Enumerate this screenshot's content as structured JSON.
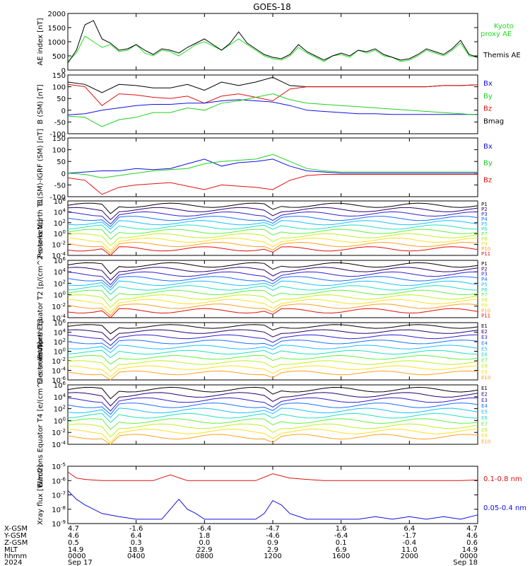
{
  "title": "GOES-18",
  "colors": {
    "black": "#000000",
    "red": "#e01010",
    "green": "#20d020",
    "blue": "#1010e0",
    "kyoto": "#20e020"
  },
  "chart_data": [
    {
      "type": "line",
      "panel": "ae",
      "ylabel": "AE index [nT]",
      "ylim": [
        0,
        2000
      ],
      "ticks": [
        "2000",
        "1500",
        "1000",
        "500",
        "0"
      ],
      "legend": [
        {
          "label": "Kyoto",
          "color": "#20e020"
        },
        {
          "label": "proxy AE",
          "color": "#20e020"
        },
        {
          "label": "Themis AE",
          "color": "#000000"
        }
      ],
      "series": [
        {
          "name": "Kyoto proxy AE",
          "color": "#20e020",
          "x": [
            0,
            0.5,
            1,
            1.5,
            2,
            2.5,
            3,
            3.5,
            4,
            4.5,
            5,
            5.5,
            6,
            6.5,
            7,
            7.5,
            8,
            8.5,
            9,
            9.5,
            10,
            10.5,
            11,
            11.5,
            12,
            12.5,
            13,
            13.5,
            14,
            14.5,
            15,
            15.5,
            16,
            16.5,
            17,
            17.5,
            18,
            18.5,
            19,
            19.5,
            20,
            20.5,
            21,
            21.5,
            22,
            22.5,
            23,
            23.5,
            24
          ],
          "y": [
            300,
            600,
            1200,
            1000,
            800,
            900,
            650,
            700,
            900,
            600,
            500,
            700,
            650,
            500,
            700,
            900,
            1000,
            850,
            700,
            900,
            1100,
            900,
            700,
            500,
            400,
            350,
            500,
            800,
            600,
            450,
            300,
            500,
            550,
            450,
            700,
            600,
            700,
            500,
            450,
            300,
            350,
            500,
            700,
            600,
            500,
            700,
            950,
            500,
            450
          ]
        },
        {
          "name": "Themis AE",
          "color": "#000000",
          "x": [
            0,
            0.5,
            1,
            1.5,
            2,
            2.5,
            3,
            3.5,
            4,
            4.5,
            5,
            5.5,
            6,
            6.5,
            7,
            7.5,
            8,
            8.5,
            9,
            9.5,
            10,
            10.5,
            11,
            11.5,
            12,
            12.5,
            13,
            13.5,
            14,
            14.5,
            15,
            15.5,
            16,
            16.5,
            17,
            17.5,
            18,
            18.5,
            19,
            19.5,
            20,
            20.5,
            21,
            21.5,
            22,
            22.5,
            23,
            23.5,
            24
          ],
          "y": [
            250,
            700,
            1600,
            1750,
            1100,
            950,
            700,
            750,
            900,
            700,
            550,
            750,
            700,
            600,
            800,
            950,
            1100,
            900,
            700,
            950,
            1350,
            950,
            750,
            550,
            450,
            400,
            550,
            900,
            650,
            500,
            350,
            500,
            600,
            500,
            700,
            650,
            750,
            550,
            450,
            350,
            400,
            550,
            750,
            650,
            550,
            750,
            1050,
            550,
            450
          ]
        }
      ]
    },
    {
      "type": "line",
      "panel": "bsm",
      "ylabel": "B (SM) [nT]",
      "ylim": [
        -100,
        150
      ],
      "ticks": [
        "150",
        "100",
        "50",
        "0",
        "-50",
        "-100"
      ],
      "legend": [
        {
          "label": "Bx",
          "color": "#1010e0"
        },
        {
          "label": "By",
          "color": "#20d020"
        },
        {
          "label": "Bz",
          "color": "#e01010"
        },
        {
          "label": "Bmag",
          "color": "#000000"
        }
      ],
      "series": [
        {
          "name": "Bmag",
          "color": "#000000",
          "x": [
            0,
            1,
            2,
            3,
            4,
            5,
            6,
            7,
            8,
            9,
            10,
            11,
            12,
            13,
            14,
            15,
            16,
            17,
            18,
            19,
            20,
            21,
            22,
            23,
            24
          ],
          "y": [
            120,
            110,
            75,
            110,
            105,
            95,
            95,
            110,
            85,
            120,
            105,
            120,
            140,
            105,
            100,
            100,
            100,
            100,
            100,
            100,
            100,
            100,
            105,
            105,
            108
          ]
        },
        {
          "name": "Bz",
          "color": "#e01010",
          "x": [
            0,
            1,
            2,
            3,
            4,
            5,
            6,
            7,
            8,
            9,
            10,
            11,
            12,
            13,
            14,
            15,
            16,
            17,
            18,
            19,
            20,
            21,
            22,
            23,
            24
          ],
          "y": [
            110,
            100,
            20,
            70,
            65,
            55,
            50,
            60,
            30,
            60,
            70,
            55,
            40,
            90,
            100,
            100,
            100,
            100,
            100,
            100,
            100,
            100,
            105,
            105,
            108
          ]
        },
        {
          "name": "Bx",
          "color": "#1010e0",
          "x": [
            0,
            1,
            2,
            3,
            4,
            5,
            6,
            7,
            8,
            9,
            10,
            11,
            12,
            13,
            14,
            15,
            16,
            17,
            18,
            19,
            20,
            21,
            22,
            23,
            24
          ],
          "y": [
            -20,
            -15,
            0,
            10,
            20,
            25,
            25,
            30,
            30,
            40,
            45,
            40,
            35,
            20,
            0,
            -5,
            -10,
            -15,
            -15,
            -18,
            -18,
            -18,
            -18,
            -18,
            -18
          ]
        },
        {
          "name": "By",
          "color": "#20d020",
          "x": [
            0,
            1,
            2,
            3,
            4,
            5,
            6,
            7,
            8,
            9,
            10,
            11,
            12,
            13,
            14,
            15,
            16,
            17,
            18,
            19,
            20,
            21,
            22,
            23,
            24
          ],
          "y": [
            -25,
            -30,
            -70,
            -40,
            -30,
            -10,
            -10,
            10,
            0,
            30,
            40,
            55,
            70,
            45,
            30,
            25,
            20,
            15,
            10,
            5,
            0,
            -5,
            -10,
            -15,
            -20
          ]
        }
      ]
    },
    {
      "type": "line",
      "panel": "bigrf",
      "ylabel": "B (SM)-IGRF (SM) [nT]",
      "ylim": [
        -100,
        150
      ],
      "ticks": [
        "150",
        "100",
        "50",
        "0",
        "-50",
        "-100"
      ],
      "legend": [
        {
          "label": "Bx",
          "color": "#1010e0"
        },
        {
          "label": "By",
          "color": "#20d020"
        },
        {
          "label": "Bz",
          "color": "#e01010"
        }
      ],
      "series": [
        {
          "name": "Bx",
          "color": "#1010e0",
          "x": [
            0,
            1,
            2,
            3,
            4,
            5,
            6,
            7,
            8,
            9,
            10,
            11,
            12,
            13,
            14,
            15,
            16,
            17,
            18,
            19,
            20,
            21,
            22,
            23,
            24
          ],
          "y": [
            0,
            5,
            10,
            10,
            20,
            15,
            20,
            40,
            60,
            30,
            45,
            50,
            60,
            30,
            10,
            5,
            0,
            0,
            0,
            0,
            0,
            0,
            0,
            0,
            0
          ]
        },
        {
          "name": "By",
          "color": "#20d020",
          "x": [
            0,
            1,
            2,
            3,
            4,
            5,
            6,
            7,
            8,
            9,
            10,
            11,
            12,
            13,
            14,
            15,
            16,
            17,
            18,
            19,
            20,
            21,
            22,
            23,
            24
          ],
          "y": [
            0,
            -5,
            -20,
            -10,
            0,
            10,
            15,
            20,
            40,
            50,
            55,
            60,
            80,
            50,
            20,
            10,
            5,
            5,
            5,
            5,
            5,
            5,
            5,
            5,
            5
          ]
        },
        {
          "name": "Bz",
          "color": "#e01010",
          "x": [
            0,
            1,
            2,
            3,
            4,
            5,
            6,
            7,
            8,
            9,
            10,
            11,
            12,
            13,
            14,
            15,
            16,
            17,
            18,
            19,
            20,
            21,
            22,
            23,
            24
          ],
          "y": [
            -20,
            -30,
            -90,
            -60,
            -50,
            -45,
            -40,
            -55,
            -70,
            -50,
            -55,
            -60,
            -70,
            -30,
            -10,
            -5,
            -5,
            -5,
            -5,
            -5,
            -5,
            -5,
            -5,
            -5,
            -5
          ]
        }
      ]
    },
    {
      "type": "line",
      "panel": "protons-t1",
      "ylabel": "Protons North T1",
      "yscale": "log",
      "ylim": [
        0.0001,
        1000000
      ],
      "ticks": [
        "10^6",
        "10^4",
        "10^2",
        "10^0",
        "10^-2",
        "10^-4"
      ],
      "legend": [
        "P1",
        "P2",
        "P3",
        "P4",
        "P5",
        "P6",
        "P7",
        "P8",
        "P9",
        "P10",
        "P11"
      ]
    },
    {
      "type": "line",
      "panel": "protons-t2",
      "ylabel": "Protons Equator T2 [p/(cm^2-s-sr-keV)]",
      "yscale": "log",
      "ylim": [
        0.0001,
        1000000
      ],
      "ticks": [
        "10^6",
        "10^4",
        "10^2",
        "10^0",
        "10^-2",
        "10^-4"
      ],
      "legend": [
        "P1",
        "P2",
        "P3",
        "P4",
        "P5",
        "P6",
        "P7",
        "P8",
        "P9",
        "P10",
        "P11"
      ]
    },
    {
      "type": "line",
      "panel": "electrons-t3",
      "ylabel": "Electrons North T3",
      "yscale": "log",
      "ylim": [
        1e-06,
        1000000
      ],
      "ticks": [
        "10^6",
        "10^4",
        "10^2",
        "10^0",
        "10^-2",
        "10^-4",
        "10^-6"
      ],
      "legend": [
        "E1",
        "E2",
        "E3",
        "E4",
        "E5",
        "E6",
        "E7",
        "E8",
        "E9",
        "E10"
      ]
    },
    {
      "type": "line",
      "panel": "electrons-t4",
      "ylabel": "Electrons Equator T4 [e/(cm^2-s-sr-keV)]",
      "yscale": "log",
      "ylim": [
        0.0001,
        1000000
      ],
      "ticks": [
        "10^6",
        "10^4",
        "10^2",
        "10^0",
        "10^-2",
        "10^-4"
      ],
      "legend": [
        "E1",
        "E2",
        "E3",
        "E4",
        "E5",
        "E6",
        "E7",
        "E8",
        "E9",
        "E10"
      ]
    },
    {
      "type": "line",
      "panel": "xray",
      "ylabel": "Xray flux [W/m2]",
      "yscale": "log",
      "ylim": [
        1e-09,
        1e-05
      ],
      "ticks": [
        "10^-5",
        "10^-6",
        "10^-7",
        "10^-8",
        "10^-9"
      ],
      "legend": [
        {
          "label": "0.1-0.8 nm",
          "color": "#e01010"
        },
        {
          "label": "0.05-0.4 nm",
          "color": "#1010e0"
        }
      ],
      "series": [
        {
          "name": "0.1-0.8 nm",
          "color": "#e01010",
          "x": [
            0,
            0.5,
            1,
            2,
            3,
            4,
            5,
            6,
            7,
            7.8,
            8.2,
            9,
            10,
            11,
            12,
            13,
            14,
            15,
            16,
            17,
            18,
            19,
            20,
            21,
            22,
            23,
            24
          ],
          "y": [
            4e-06,
            1.5e-06,
            1.2e-06,
            1e-06,
            1e-06,
            1e-06,
            1e-06,
            2.5e-06,
            1e-06,
            1e-06,
            1e-06,
            1e-06,
            1e-06,
            1e-06,
            3e-06,
            1.5e-06,
            1.2e-06,
            1e-06,
            1e-06,
            1e-06,
            1e-06,
            1e-06,
            1e-06,
            1e-06,
            1e-06,
            1e-06,
            1.1e-06
          ]
        },
        {
          "name": "0.05-0.4 nm",
          "color": "#1010e0",
          "x": [
            0,
            0.5,
            1,
            2,
            3,
            4,
            5,
            5.5,
            6,
            6.5,
            7,
            7.5,
            8,
            9,
            10,
            11,
            11.5,
            12,
            12.5,
            13,
            14,
            15,
            16,
            17,
            18,
            19,
            20,
            21,
            22,
            23,
            24
          ],
          "y": [
            2e-07,
            5e-08,
            2e-08,
            5e-09,
            3e-09,
            2e-09,
            2e-09,
            2e-09,
            1e-08,
            5e-08,
            1e-08,
            5e-09,
            2e-09,
            2e-09,
            2e-09,
            2e-09,
            5e-09,
            4e-08,
            2e-08,
            5e-09,
            2e-09,
            2e-09,
            2e-09,
            2e-09,
            3e-09,
            2e-09,
            3e-09,
            2e-09,
            3e-09,
            2e-09,
            4e-09
          ]
        }
      ]
    }
  ],
  "xaxis": {
    "row_labels": [
      "X-GSM",
      "Y-GSM",
      "Z-GSM",
      "MLT",
      "hhmm",
      "2024"
    ],
    "columns": [
      [
        "4.7",
        "4.6",
        "0.5",
        "14.9",
        "0000",
        "Sep 17"
      ],
      [
        "-1.6",
        "6.4",
        "0.3",
        "18.9",
        "0400",
        ""
      ],
      [
        "-6.4",
        "1.8",
        "0.0",
        "22.9",
        "0800",
        ""
      ],
      [
        "-4.7",
        "-4.6",
        "0.9",
        "2.9",
        "1200",
        ""
      ],
      [
        "1.6",
        "-6.4",
        "0.1",
        "6.9",
        "1600",
        ""
      ],
      [
        "6.4",
        "-1.7",
        "-0.4",
        "11.0",
        "2000",
        ""
      ],
      [
        "4.7",
        "4.6",
        "0.6",
        "14.9",
        "0000",
        "Sep 18"
      ]
    ]
  }
}
